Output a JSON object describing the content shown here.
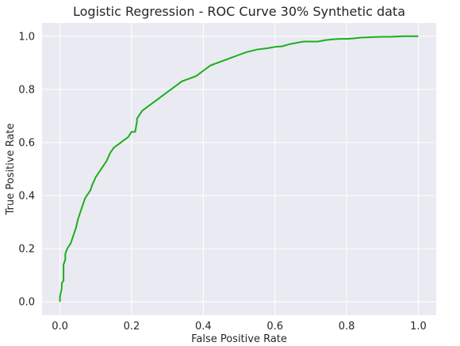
{
  "chart_data": {
    "type": "line",
    "title": "Logistic Regression - ROC Curve 30% Synthetic data",
    "xlabel": "False Positive Rate",
    "ylabel": "True Positive Rate",
    "xlim": [
      -0.05,
      1.05
    ],
    "ylim": [
      -0.05,
      1.05
    ],
    "xticks": [
      "0.0",
      "0.2",
      "0.4",
      "0.6",
      "0.8",
      "1.0"
    ],
    "yticks": [
      "0.0",
      "0.2",
      "0.4",
      "0.6",
      "0.8",
      "1.0"
    ],
    "grid": true,
    "colors": {
      "background": "#eaeaf2",
      "grid": "#ffffff",
      "line": "#1aaf1a"
    },
    "series": [
      {
        "x": [
          0.0,
          0.0,
          0.005,
          0.005,
          0.01,
          0.01,
          0.015,
          0.015,
          0.02,
          0.025,
          0.03,
          0.04,
          0.045,
          0.05,
          0.055,
          0.06,
          0.065,
          0.07,
          0.075,
          0.08,
          0.085,
          0.09,
          0.1,
          0.11,
          0.12,
          0.13,
          0.14,
          0.15,
          0.16,
          0.17,
          0.18,
          0.19,
          0.2,
          0.21,
          0.215,
          0.215,
          0.22,
          0.23,
          0.24,
          0.25,
          0.26,
          0.28,
          0.3,
          0.32,
          0.34,
          0.36,
          0.38,
          0.4,
          0.42,
          0.44,
          0.46,
          0.48,
          0.5,
          0.52,
          0.55,
          0.58,
          0.6,
          0.62,
          0.64,
          0.66,
          0.68,
          0.7,
          0.72,
          0.74,
          0.76,
          0.78,
          0.8,
          0.82,
          0.84,
          0.86,
          0.88,
          0.9,
          0.92,
          0.94,
          0.96,
          0.98,
          1.0
        ],
        "y": [
          0.0,
          0.02,
          0.05,
          0.07,
          0.08,
          0.14,
          0.16,
          0.18,
          0.2,
          0.21,
          0.22,
          0.26,
          0.28,
          0.31,
          0.33,
          0.35,
          0.37,
          0.39,
          0.4,
          0.41,
          0.42,
          0.44,
          0.47,
          0.49,
          0.51,
          0.53,
          0.56,
          0.58,
          0.59,
          0.6,
          0.61,
          0.62,
          0.64,
          0.64,
          0.68,
          0.69,
          0.7,
          0.72,
          0.73,
          0.74,
          0.75,
          0.77,
          0.79,
          0.81,
          0.83,
          0.84,
          0.85,
          0.87,
          0.89,
          0.9,
          0.91,
          0.92,
          0.93,
          0.94,
          0.95,
          0.955,
          0.96,
          0.962,
          0.97,
          0.975,
          0.98,
          0.98,
          0.98,
          0.985,
          0.988,
          0.99,
          0.99,
          0.992,
          0.995,
          0.996,
          0.997,
          0.998,
          0.998,
          0.999,
          1.0,
          1.0,
          1.0
        ]
      }
    ]
  }
}
